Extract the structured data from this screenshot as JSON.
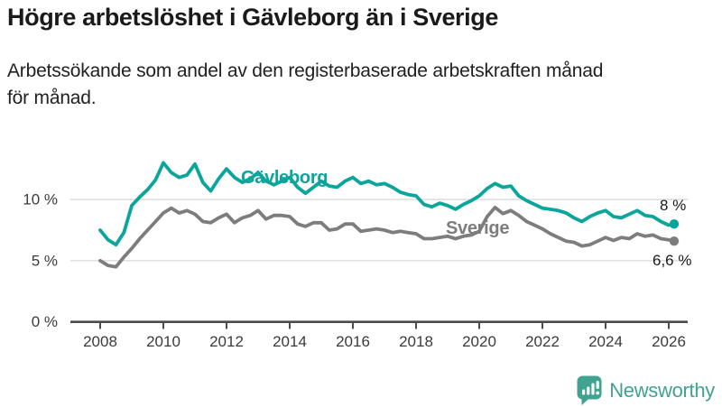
{
  "header": {
    "title": "Högre arbetslöshet i Gävleborg än i Sverige",
    "subtitle_lines": [
      "Arbetssökande som andel av den registerbaserade arbetskraften månad",
      "för månad."
    ]
  },
  "chart_data": {
    "type": "line",
    "unit": "%",
    "grid": "horizontal",
    "legend": "inline-labels-on-lines",
    "xlim": [
      2007.1,
      2026.5
    ],
    "ylim": [
      0,
      14
    ],
    "x_ticks": [
      {
        "value": 2008,
        "label": "2008"
      },
      {
        "value": 2010,
        "label": "2010"
      },
      {
        "value": 2012,
        "label": "2012"
      },
      {
        "value": 2014,
        "label": "2014"
      },
      {
        "value": 2016,
        "label": "2016"
      },
      {
        "value": 2018,
        "label": "2018"
      },
      {
        "value": 2020,
        "label": "2020"
      },
      {
        "value": 2022,
        "label": "2022"
      },
      {
        "value": 2024,
        "label": "2024"
      },
      {
        "value": 2026,
        "label": "2026"
      }
    ],
    "y_ticks": [
      {
        "value": 0,
        "label": "0 %"
      },
      {
        "value": 5,
        "label": "5 %"
      },
      {
        "value": 10,
        "label": "10 %"
      }
    ],
    "x": [
      2008,
      2008.25,
      2008.5,
      2008.75,
      2009,
      2009.25,
      2009.5,
      2009.75,
      2010,
      2010.25,
      2010.5,
      2010.75,
      2011,
      2011.25,
      2011.5,
      2011.75,
      2012,
      2012.25,
      2012.5,
      2012.75,
      2013,
      2013.25,
      2013.5,
      2013.75,
      2014,
      2014.25,
      2014.5,
      2014.75,
      2015,
      2015.25,
      2015.5,
      2015.75,
      2016,
      2016.25,
      2016.5,
      2016.75,
      2017,
      2017.25,
      2017.5,
      2017.75,
      2018,
      2018.25,
      2018.5,
      2018.75,
      2019,
      2019.25,
      2019.5,
      2019.75,
      2020,
      2020.25,
      2020.5,
      2020.75,
      2021,
      2021.25,
      2021.5,
      2021.75,
      2022,
      2022.25,
      2022.5,
      2022.75,
      2023,
      2023.25,
      2023.5,
      2023.75,
      2024,
      2024.25,
      2024.5,
      2024.75,
      2025,
      2025.25,
      2025.5,
      2025.75,
      2026,
      2026.17
    ],
    "series": [
      {
        "name": "Gävleborg",
        "color": "#0aa59b",
        "end_label": "8 %",
        "end_value": 8.0,
        "values": [
          7.5,
          6.7,
          6.3,
          7.3,
          9.5,
          10.2,
          10.8,
          11.6,
          13.0,
          12.2,
          11.8,
          12.0,
          12.9,
          11.4,
          10.7,
          11.7,
          12.5,
          11.8,
          11.4,
          11.7,
          12.2,
          11.5,
          11.2,
          11.5,
          11.8,
          11.0,
          10.5,
          11.0,
          11.5,
          11.1,
          11.0,
          11.5,
          11.8,
          11.3,
          11.5,
          11.2,
          11.3,
          11.0,
          10.6,
          10.4,
          10.3,
          9.6,
          9.4,
          9.7,
          9.5,
          9.2,
          9.6,
          9.9,
          10.3,
          10.9,
          11.3,
          11.0,
          11.1,
          10.3,
          9.9,
          9.6,
          9.3,
          9.2,
          9.1,
          8.9,
          8.5,
          8.2,
          8.6,
          8.9,
          9.1,
          8.6,
          8.5,
          8.8,
          9.1,
          8.7,
          8.6,
          8.2,
          7.9,
          8.0
        ]
      },
      {
        "name": "Sverige",
        "color": "#7d7d7d",
        "end_label": "6,6 %",
        "end_value": 6.6,
        "values": [
          5.0,
          4.6,
          4.5,
          5.3,
          6.0,
          6.8,
          7.5,
          8.2,
          8.9,
          9.3,
          8.9,
          9.1,
          8.8,
          8.2,
          8.1,
          8.5,
          8.8,
          8.1,
          8.5,
          8.7,
          9.1,
          8.4,
          8.7,
          8.7,
          8.6,
          8.0,
          7.8,
          8.1,
          8.1,
          7.5,
          7.6,
          8.0,
          8.0,
          7.4,
          7.5,
          7.6,
          7.5,
          7.3,
          7.4,
          7.3,
          7.2,
          6.8,
          6.8,
          6.9,
          7.0,
          6.8,
          7.0,
          7.1,
          7.4,
          8.6,
          9.35,
          8.85,
          9.1,
          8.7,
          8.2,
          7.9,
          7.6,
          7.2,
          6.9,
          6.6,
          6.5,
          6.2,
          6.3,
          6.6,
          6.9,
          6.65,
          6.9,
          6.8,
          7.2,
          7.0,
          7.1,
          6.8,
          6.7,
          6.6
        ]
      }
    ]
  },
  "branding": {
    "logo_text": "Newsworthy",
    "logo_color": "#3fa390",
    "icon": "newsworthy-bars-speech-bubble-icon"
  },
  "colors": {
    "title": "#1a1a1a",
    "axis_line": "#4b4b4b",
    "grid_line": "#d9d9d9",
    "tick_label": "#3b3b3b",
    "end_label": "#1a1a1a"
  }
}
